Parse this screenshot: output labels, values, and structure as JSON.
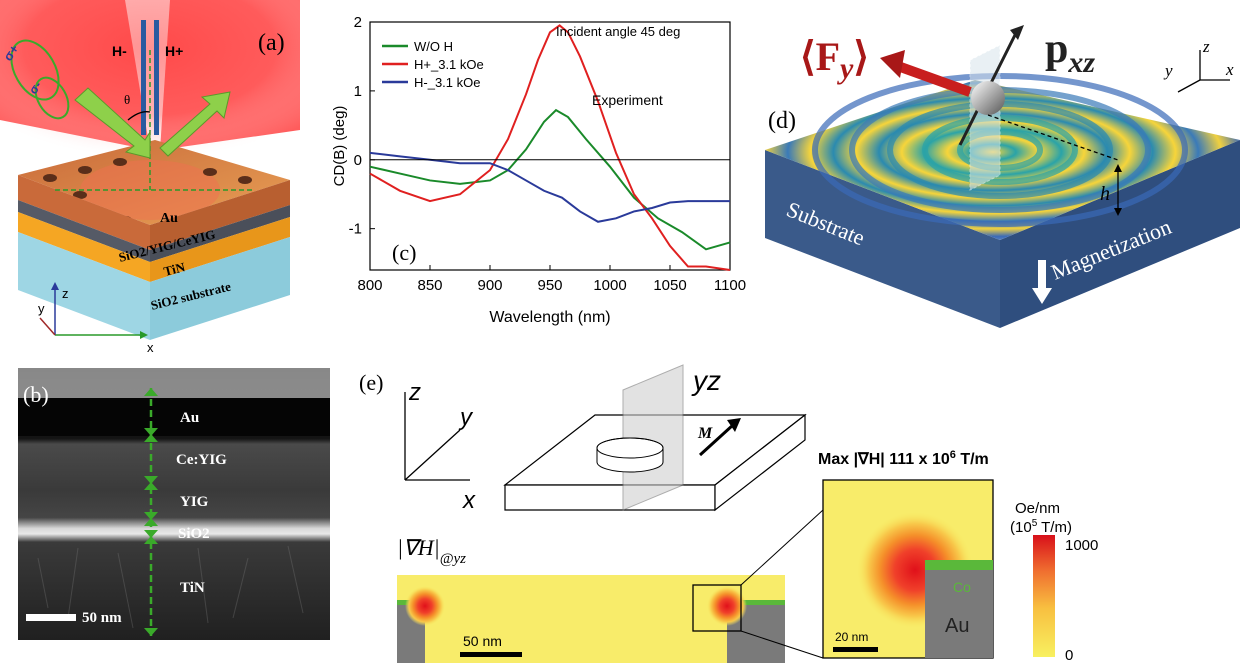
{
  "panel_a": {
    "label": "(a)",
    "h_minus": "H-",
    "h_plus": "H+",
    "sigma_plus": "σ+",
    "sigma_minus": "σ-",
    "theta": "θ",
    "layer_au": "Au",
    "layer_sio2_yig": "SiO2/YIG/CeYIG",
    "layer_tin": "TiN",
    "layer_substrate": "SiO2 substrate",
    "axis_x": "x",
    "axis_y": "y",
    "axis_z": "z"
  },
  "panel_b": {
    "label": "(b)",
    "layers": [
      "Au",
      "Ce:YIG",
      "YIG",
      "SiO2",
      "TiN"
    ],
    "scale_bar": "50 nm"
  },
  "panel_c": {
    "label": "(c)",
    "annotation_top": "Incident angle 45 deg",
    "annotation_mid": "Experiment"
  },
  "chart_data": {
    "type": "line",
    "xlabel": "Wavelength (nm)",
    "ylabel": "CD(B) (deg)",
    "xlim": [
      800,
      1100
    ],
    "ylim": [
      -1.6,
      2
    ],
    "xticks": [
      "800",
      "850",
      "900",
      "950",
      "1000",
      "1050",
      "1100"
    ],
    "yticks": [
      "-1",
      "0",
      "1",
      "2"
    ],
    "legend_position": "top-left",
    "series": [
      {
        "name": "W/O H",
        "color": "#1a8a2a",
        "x": [
          800,
          825,
          850,
          875,
          900,
          915,
          930,
          945,
          955,
          965,
          980,
          1000,
          1020,
          1040,
          1060,
          1080,
          1100
        ],
        "y": [
          -0.1,
          -0.2,
          -0.3,
          -0.35,
          -0.3,
          -0.15,
          0.15,
          0.55,
          0.72,
          0.62,
          0.3,
          -0.1,
          -0.55,
          -0.85,
          -1.05,
          -1.3,
          -1.2
        ]
      },
      {
        "name": "H+_3.1 kOe",
        "color": "#e02020",
        "x": [
          800,
          825,
          850,
          875,
          900,
          915,
          930,
          940,
          950,
          958,
          965,
          975,
          990,
          1005,
          1020,
          1035,
          1050,
          1065,
          1080,
          1100
        ],
        "y": [
          -0.2,
          -0.45,
          -0.6,
          -0.5,
          -0.15,
          0.3,
          0.95,
          1.45,
          1.85,
          1.95,
          1.85,
          1.5,
          0.85,
          0.1,
          -0.5,
          -0.85,
          -1.25,
          -1.55,
          -1.55,
          -1.6
        ]
      },
      {
        "name": "H-_3.1 kOe",
        "color": "#2a3a9a",
        "x": [
          800,
          825,
          850,
          875,
          900,
          915,
          930,
          945,
          960,
          975,
          990,
          1005,
          1020,
          1035,
          1050,
          1065,
          1080,
          1100
        ],
        "y": [
          0.1,
          0.05,
          0.0,
          -0.05,
          -0.05,
          -0.15,
          -0.3,
          -0.45,
          -0.55,
          -0.75,
          -0.9,
          -0.85,
          -0.75,
          -0.7,
          -0.62,
          -0.6,
          -0.6,
          -0.6
        ]
      }
    ]
  },
  "panel_d": {
    "label": "(d)",
    "force": "⟨F",
    "force_sub": "y",
    "force_close": "⟩",
    "dipole": "p",
    "dipole_sub": "xz",
    "substrate": "Substrate",
    "magnetization": "Magnetization",
    "height": "h",
    "axis_x": "x",
    "axis_y": "y",
    "axis_z": "z"
  },
  "panel_e": {
    "label": "(e)",
    "axis_x": "x",
    "axis_y": "y",
    "axis_z": "z",
    "plane": "yz",
    "m_label": "M",
    "grad_label": "|∇H|",
    "grad_sub": "@yz",
    "scale_bar_left": "50 nm",
    "max_title": "Max |∇H| 111 x 10",
    "max_exp": "6",
    "max_unit": " T/m",
    "co_label": "Co",
    "au_label": "Au",
    "scale_bar_zoom": "20 nm",
    "colorbar_unit1": "Oe/nm",
    "colorbar_unit2": "(10",
    "colorbar_exp": "5",
    "colorbar_unit3": " T/m)",
    "colorbar_max": "1000",
    "colorbar_min": "0"
  }
}
